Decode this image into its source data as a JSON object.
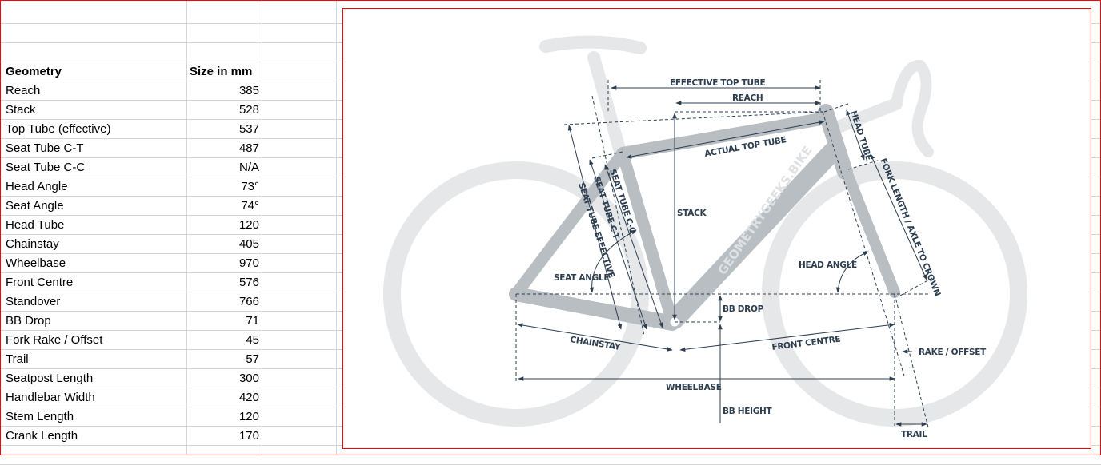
{
  "table": {
    "header": {
      "geometry": "Geometry",
      "size": "Size in mm"
    },
    "rows": [
      {
        "label": "Reach",
        "value": "385"
      },
      {
        "label": "Stack",
        "value": "528"
      },
      {
        "label": "Top Tube (effective)",
        "value": "537"
      },
      {
        "label": "Seat Tube C-T",
        "value": "487"
      },
      {
        "label": "Seat Tube C-C",
        "value": "N/A"
      },
      {
        "label": "Head Angle",
        "value": "73°"
      },
      {
        "label": "Seat Angle",
        "value": "74°"
      },
      {
        "label": "Head Tube",
        "value": "120"
      },
      {
        "label": "Chainstay",
        "value": "405"
      },
      {
        "label": "Wheelbase",
        "value": "970"
      },
      {
        "label": "Front Centre",
        "value": "576"
      },
      {
        "label": "Standover",
        "value": "766"
      },
      {
        "label": "BB Drop",
        "value": "71"
      },
      {
        "label": "Fork Rake / Offset",
        "value": "45"
      },
      {
        "label": "Trail",
        "value": "57"
      },
      {
        "label": "Seatpost Length",
        "value": "300"
      },
      {
        "label": "Handlebar Width",
        "value": "420"
      },
      {
        "label": "Stem Length",
        "value": "120"
      },
      {
        "label": "Crank Length",
        "value": "170"
      }
    ]
  },
  "diagram": {
    "watermark": "GEOMETRYGEEKS.BIKE",
    "labels": {
      "effective_top_tube": "EFFECTIVE TOP TUBE",
      "reach": "REACH",
      "actual_top_tube": "ACTUAL TOP TUBE",
      "head_tube": "HEAD TUBE",
      "fork_length": "FORK LENGTH / AXLE TO CROWN",
      "stack": "STACK",
      "seat_tube_cc": "SEAT TUBE C-C",
      "seat_tube_ct": "SEAT TUBE C-T",
      "seat_tube_effective": "SEAT TUBE EFFECTIVE",
      "seat_angle": "SEAT ANGLE",
      "head_angle": "HEAD ANGLE",
      "bb_drop": "BB DROP",
      "chainstay": "CHAINSTAY",
      "front_centre": "FRONT CENTRE",
      "rake_offset": "RAKE / OFFSET",
      "wheelbase": "WHEELBASE",
      "bb_height": "BB HEIGHT",
      "trail": "TRAIL"
    },
    "colors": {
      "frame": "#b9bec3",
      "wheel": "#e6e7e8",
      "lines": "#2d3e50",
      "border": "#ff0000"
    }
  }
}
